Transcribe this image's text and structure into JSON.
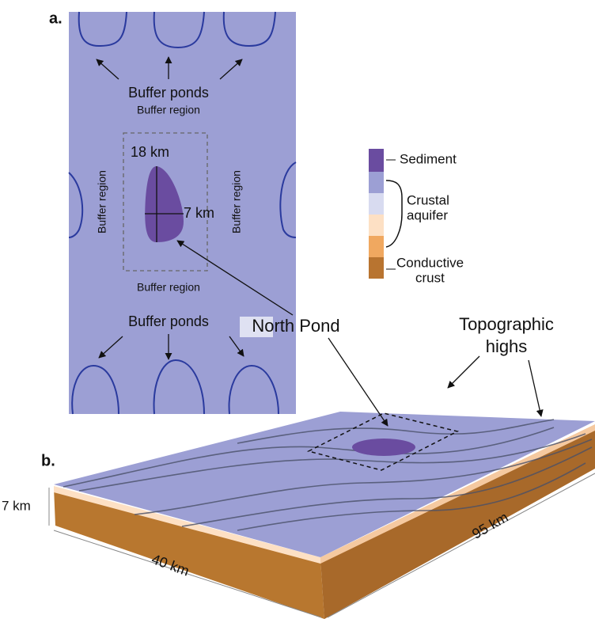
{
  "panel_a": {
    "label": "a.",
    "buffer_ponds": [
      "Buffer ponds",
      "Buffer ponds"
    ],
    "buffer_regions": [
      "Buffer region",
      "Buffer region",
      "Buffer region",
      "Buffer region"
    ],
    "length": "18 km",
    "width": "7 km"
  },
  "legend": [
    {
      "label": [
        "Sediment"
      ]
    },
    {
      "label": [
        "Crustal",
        "aquifer"
      ]
    },
    {
      "label": [
        "Conductive",
        "crust"
      ]
    }
  ],
  "callouts": {
    "north_pond": "North Pond",
    "topographic_highs": [
      "Topographic",
      "highs"
    ]
  },
  "panel_b": {
    "label": "b.",
    "depth": "7 km",
    "width": "40 km",
    "length": "95 km"
  }
}
